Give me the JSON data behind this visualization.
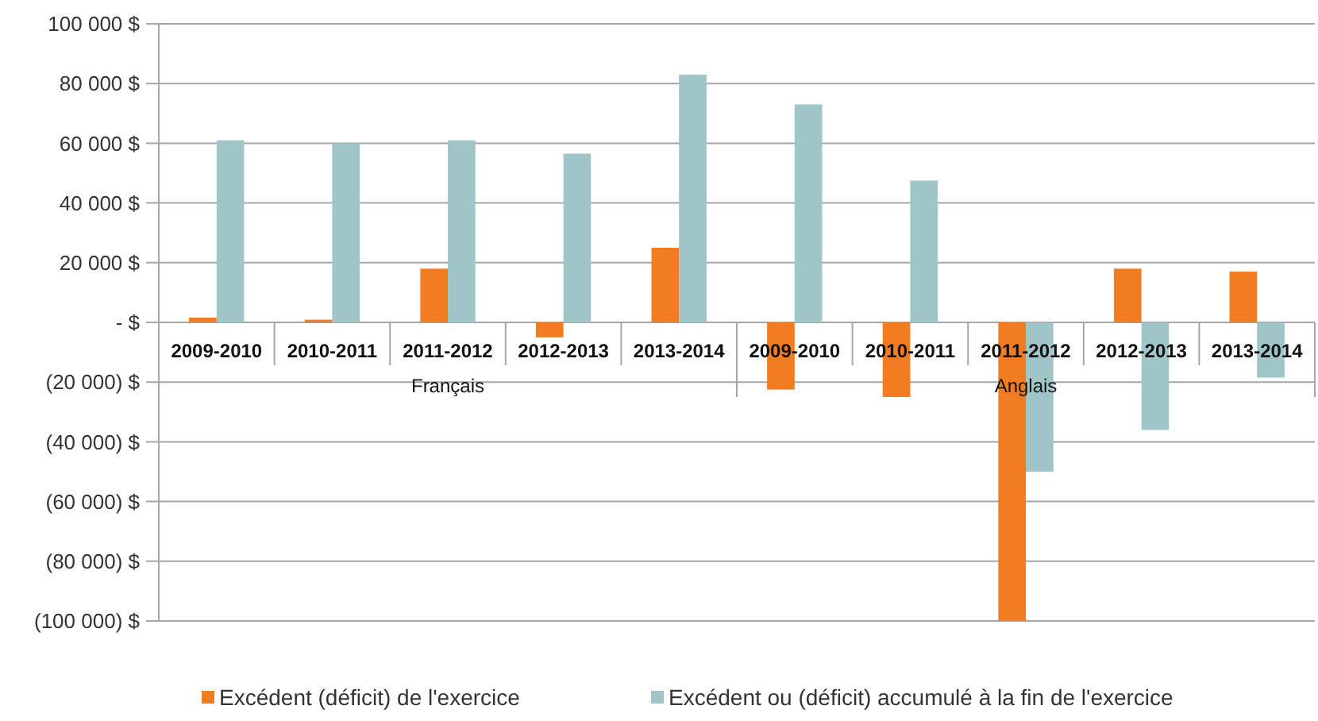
{
  "chart_data": {
    "type": "bar",
    "categories": [
      "2009-2010",
      "2010-2011",
      "2011-2012",
      "2012-2013",
      "2013-2014",
      "2009-2010",
      "2010-2011",
      "2011-2012",
      "2012-2013",
      "2013-2014"
    ],
    "series": [
      {
        "name": "Excédent (déficit) de l'exercice",
        "color": "#f27c21",
        "values": [
          1600,
          900,
          18000,
          -5000,
          25000,
          -22500,
          -25000,
          -100000,
          18000,
          17000
        ]
      },
      {
        "name": "Excédent ou (déficit) accumulé à la fin de l'exercice",
        "color": "#9fc5c8",
        "values": [
          61000,
          60000,
          61000,
          56500,
          83000,
          73000,
          47500,
          -50000,
          -36000,
          -18500
        ]
      }
    ],
    "annotations": [
      "Français",
      "Anglais"
    ],
    "ylim": [
      -100000,
      100000
    ],
    "yticks": [
      {
        "value": 100000,
        "label": "100 000 $"
      },
      {
        "value": 80000,
        "label": "80 000 $"
      },
      {
        "value": 60000,
        "label": "60 000 $"
      },
      {
        "value": 40000,
        "label": "40 000 $"
      },
      {
        "value": 20000,
        "label": "20 000 $"
      },
      {
        "value": 0,
        "label": "-   $"
      },
      {
        "value": -20000,
        "label": "(20 000) $"
      },
      {
        "value": -40000,
        "label": "(40 000) $"
      },
      {
        "value": -60000,
        "label": "(60 000) $"
      },
      {
        "value": -80000,
        "label": "(80 000) $"
      },
      {
        "value": -100000,
        "label": "(100 000) $"
      }
    ],
    "grid": "y",
    "legend": "bottom"
  }
}
